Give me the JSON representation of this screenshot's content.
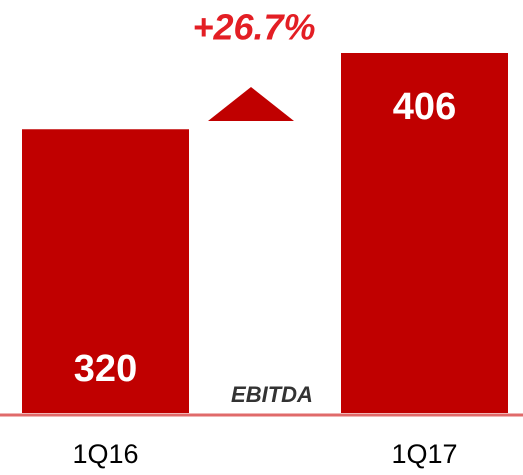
{
  "chart_data": {
    "type": "bar",
    "categories": [
      "1Q16",
      "1Q17"
    ],
    "values": [
      320,
      406
    ],
    "color": "#c00000",
    "annotations": [
      "+26.7%",
      "EBITDA"
    ]
  }
}
